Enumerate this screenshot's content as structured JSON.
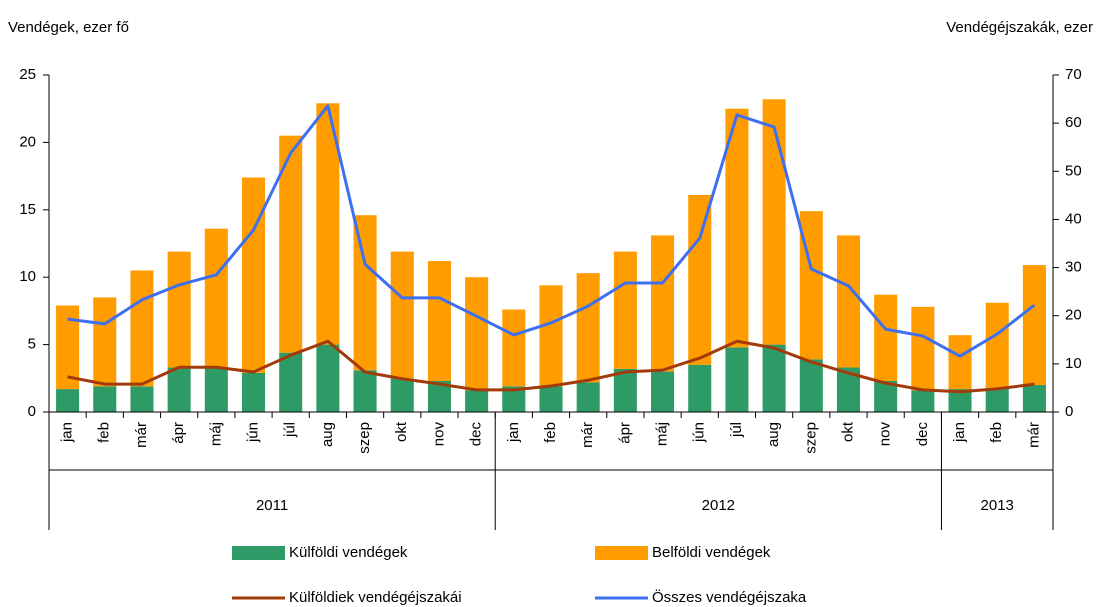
{
  "chart_data": {
    "type": "bar",
    "y_label": "Vendégek, ezer fő",
    "y2_label": "Vendégéjszakák, ezer",
    "categories": [
      "jan",
      "feb",
      "már",
      "ápr",
      "máj",
      "jún",
      "júl",
      "aug",
      "szep",
      "okt",
      "nov",
      "dec",
      "jan",
      "feb",
      "már",
      "ápr",
      "máj",
      "jún",
      "júl",
      "aug",
      "szep",
      "okt",
      "nov",
      "dec",
      "jan",
      "feb",
      "már"
    ],
    "x_groups": [
      "2011",
      "2011",
      "2011",
      "2011",
      "2011",
      "2011",
      "2011",
      "2011",
      "2011",
      "2011",
      "2011",
      "2011",
      "2012",
      "2012",
      "2012",
      "2012",
      "2012",
      "2012",
      "2012",
      "2012",
      "2012",
      "2012",
      "2012",
      "2012",
      "2013",
      "2013",
      "2013"
    ],
    "series": [
      {
        "name": "Külföldi vendégek",
        "type": "bar",
        "color": "#2e9b67",
        "values": [
          1.7,
          1.9,
          1.9,
          3.3,
          3.3,
          2.9,
          4.4,
          5.0,
          3.1,
          2.5,
          2.3,
          1.6,
          1.9,
          1.9,
          2.2,
          3.2,
          3.0,
          3.5,
          4.8,
          5.0,
          3.9,
          3.3,
          2.3,
          1.6,
          1.7,
          1.8,
          2.0
        ]
      },
      {
        "name": "Belföldi vendégek",
        "type": "bar",
        "color": "#ff9c00",
        "values": [
          6.2,
          6.6,
          8.6,
          8.6,
          10.3,
          14.5,
          16.1,
          17.9,
          11.5,
          9.4,
          8.9,
          8.4,
          5.7,
          7.5,
          8.1,
          8.7,
          10.1,
          12.6,
          17.7,
          18.2,
          11.0,
          9.8,
          6.4,
          6.2,
          4.0,
          6.3,
          8.9
        ]
      },
      {
        "name": "Külföldiek vendégéjszakái",
        "type": "line",
        "axis": "y2",
        "color": "#a33a0a",
        "values": [
          7.3,
          5.8,
          5.8,
          9.3,
          9.3,
          8.3,
          11.8,
          14.7,
          8.3,
          6.9,
          5.8,
          4.6,
          4.6,
          5.4,
          6.6,
          8.3,
          8.7,
          11.2,
          14.7,
          13.3,
          10.4,
          8.1,
          6.0,
          4.6,
          4.2,
          4.8,
          5.8
        ]
      },
      {
        "name": "Összes vendégéjszaka",
        "type": "line",
        "axis": "y2",
        "color": "#3d6ff0",
        "values": [
          19.3,
          18.3,
          23.3,
          26.4,
          28.5,
          37.8,
          53.8,
          63.6,
          30.7,
          23.7,
          23.7,
          19.9,
          16.0,
          18.5,
          22.0,
          26.8,
          26.8,
          36.1,
          61.7,
          59.2,
          29.7,
          26.2,
          17.2,
          15.8,
          11.6,
          16.2,
          22.2
        ]
      }
    ],
    "ylim": [
      0,
      25
    ],
    "yticks": [
      0,
      5,
      10,
      15,
      20,
      25
    ],
    "y2lim": [
      0,
      70
    ],
    "y2ticks": [
      0,
      10,
      20,
      30,
      40,
      50,
      60,
      70
    ],
    "grid": false
  }
}
